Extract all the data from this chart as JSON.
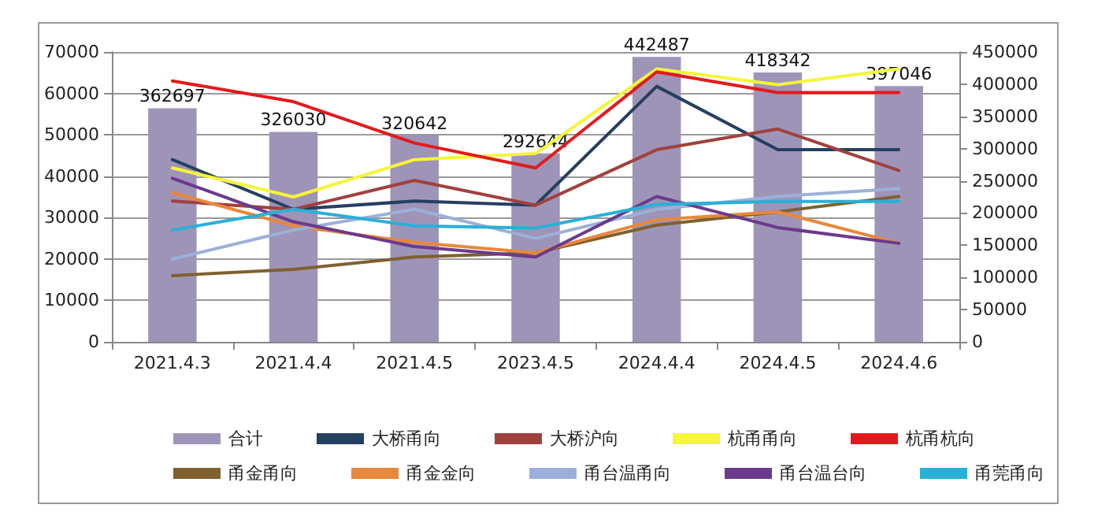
{
  "chart_data": {
    "type": "line",
    "categories": [
      "2021.4.3",
      "2021.4.4",
      "2021.4.5",
      "2023.4.5",
      "2024.4.4",
      "2024.4.5",
      "2024.4.6"
    ],
    "series": [
      {
        "name": "合计",
        "type": "bar",
        "axis": "y2",
        "color": "#9e94b8",
        "values": [
          362697,
          326030,
          320642,
          292644,
          442487,
          418342,
          397046
        ],
        "data_labels": true
      },
      {
        "name": "大桥甬向",
        "color": "#243f60",
        "values": [
          44000,
          32000,
          34000,
          33000,
          61700,
          46400,
          46400
        ]
      },
      {
        "name": "大桥沪向",
        "color": "#a0413d",
        "values": [
          34000,
          32000,
          39000,
          33000,
          46400,
          51400,
          41400
        ]
      },
      {
        "name": "杭甬甬向",
        "color": "#f5f53a",
        "values": [
          42000,
          35000,
          44000,
          45500,
          65900,
          62100,
          65900
        ]
      },
      {
        "name": "杭甬杭向",
        "color": "#e31a1c",
        "values": [
          63000,
          58000,
          48000,
          42000,
          65200,
          60200,
          60200
        ]
      },
      {
        "name": "甬金甬向",
        "color": "#7f6030",
        "values": [
          16000,
          17500,
          20500,
          21500,
          28200,
          31400,
          35100
        ]
      },
      {
        "name": "甬金金向",
        "color": "#e8883a",
        "values": [
          36000,
          28000,
          24000,
          21500,
          29500,
          31400,
          23800
        ]
      },
      {
        "name": "甬台温甬向",
        "color": "#9bb0d8",
        "values": [
          20000,
          27000,
          32000,
          25000,
          32000,
          35100,
          37000
        ]
      },
      {
        "name": "甬台温台向",
        "color": "#6b3a8c",
        "values": [
          39500,
          29000,
          23000,
          20500,
          35100,
          27600,
          23800
        ]
      },
      {
        "name": "甬莞甬向",
        "color": "#2ab0d6",
        "values": [
          27000,
          32000,
          28000,
          27500,
          33200,
          33900,
          33900
        ]
      }
    ],
    "ylim": [
      0,
      70000
    ],
    "yticks": [
      0,
      10000,
      20000,
      30000,
      40000,
      50000,
      60000,
      70000
    ],
    "y2lim": [
      0,
      450000
    ],
    "y2ticks": [
      0,
      50000,
      100000,
      150000,
      200000,
      250000,
      300000,
      350000,
      400000,
      450000
    ],
    "grid": "y",
    "legend": "bottom",
    "marker": "none",
    "line_style": "solid"
  }
}
